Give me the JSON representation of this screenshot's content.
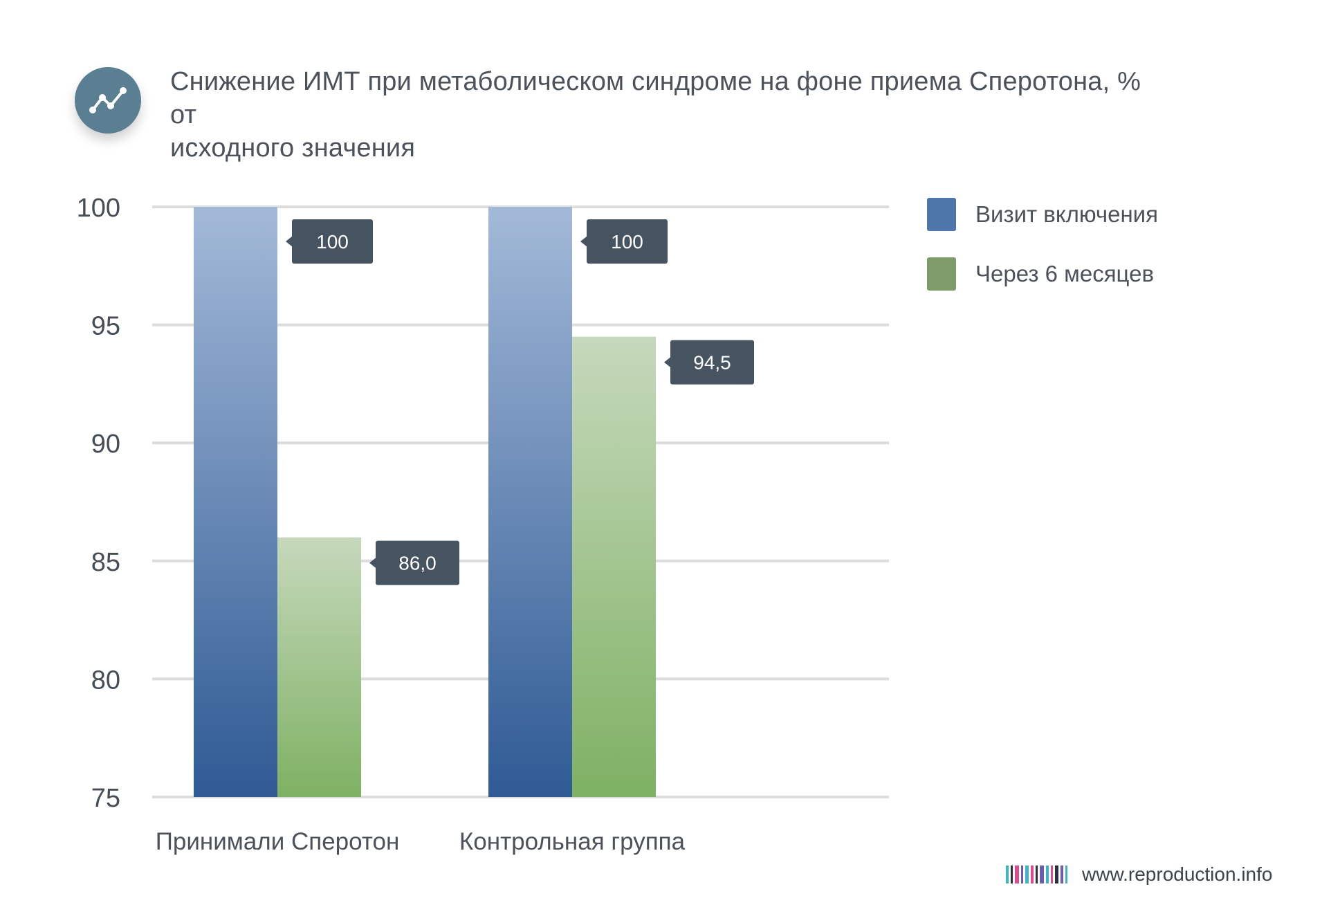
{
  "header": {
    "icon": "trend-line-icon",
    "title_line1": "Снижение ИМТ при метаболическом синдроме на фоне приема Сперотона, % от",
    "title_line2": "исходного значения"
  },
  "chart_data": {
    "type": "bar",
    "title": "Снижение ИМТ при метаболическом синдроме на фоне приема Сперотона, % от исходного значения",
    "categories": [
      "Принимали Сперотон",
      "Контрольная группа"
    ],
    "series": [
      {
        "name": "Визит включения",
        "values": [
          100,
          100
        ],
        "labels": [
          "100",
          "100"
        ],
        "color_top": "#a3b9d8",
        "color_bottom": "#2f5a94"
      },
      {
        "name": "Через 6 месяцев",
        "values": [
          86.0,
          94.5
        ],
        "labels": [
          "86,0",
          "94,5"
        ],
        "color_top": "#c6d8bc",
        "color_bottom": "#7eb163"
      }
    ],
    "ylim": [
      75,
      100
    ],
    "yticks": [
      75,
      80,
      85,
      90,
      95,
      100
    ],
    "xlabel": "",
    "ylabel": "",
    "grid": true,
    "legend_position": "right"
  },
  "legend": {
    "items": [
      {
        "label": "Визит включения",
        "color": "#4f76aa"
      },
      {
        "label": "Через 6 месяцев",
        "color": "#7e9c6a"
      }
    ]
  },
  "footer": {
    "site": "www.reproduction.info",
    "barcode_colors": [
      "#3fb6c6",
      "#2b2f3a",
      "#e04a8f",
      "#6a5bb8",
      "#3fb6c6",
      "#e04a8f",
      "#2b2f3a",
      "#6a5bb8",
      "#3fb6c6",
      "#e04a8f",
      "#2b2f3a",
      "#6a5bb8",
      "#3fb6c6"
    ]
  }
}
